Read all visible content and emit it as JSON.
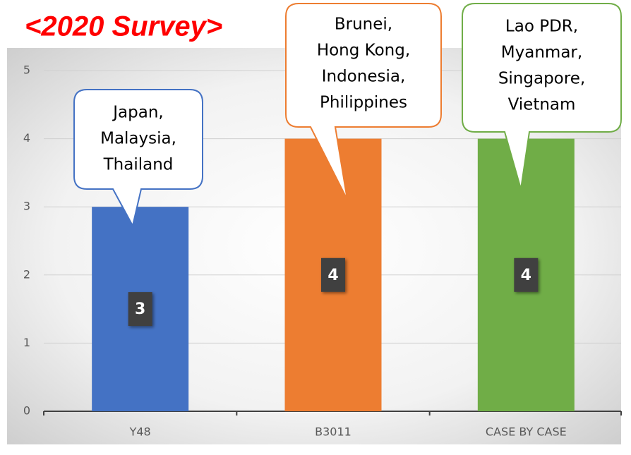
{
  "chart_data": {
    "type": "bar",
    "title": "<2020 Survey>",
    "categories": [
      "Y48",
      "B3011",
      "CASE BY CASE"
    ],
    "values": [
      3,
      4,
      4
    ],
    "colors": [
      "#4472c4",
      "#ed7d31",
      "#70ad47"
    ],
    "ylim": [
      0,
      5
    ],
    "yticks": [
      0,
      1,
      2,
      3,
      4,
      5
    ],
    "grid": true,
    "annotations": [
      [
        "Japan,",
        "Malaysia,",
        "Thailand"
      ],
      [
        "Brunei,",
        "Hong Kong,",
        "Indonesia,",
        "Philippines"
      ],
      [
        "Lao PDR,",
        "Myanmar,",
        "Singapore,",
        "Vietnam"
      ]
    ]
  }
}
